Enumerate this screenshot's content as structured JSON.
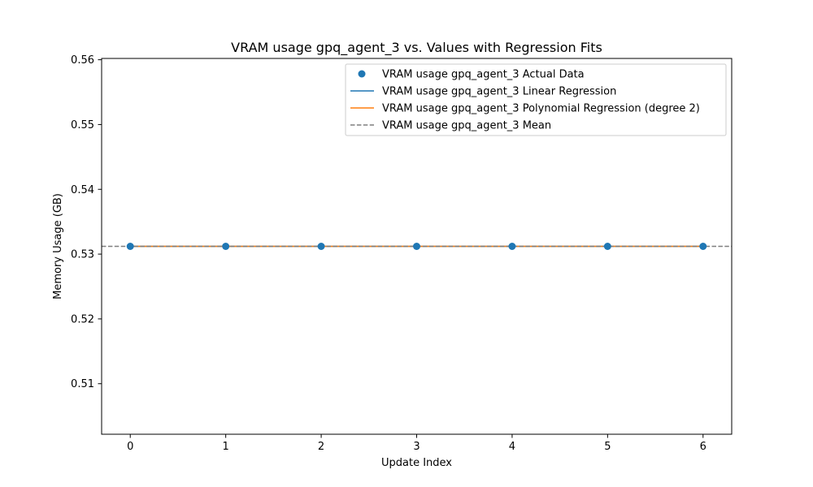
{
  "chart_data": {
    "type": "scatter",
    "title": "VRAM usage gpq_agent_3 vs. Values with Regression Fits",
    "xlabel": "Update Index",
    "ylabel": "Memory Usage (GB)",
    "xlim": [
      -0.3,
      6.3
    ],
    "ylim": [
      0.5022,
      0.5602
    ],
    "x_ticks": [
      0,
      1,
      2,
      3,
      4,
      5,
      6
    ],
    "y_ticks": [
      0.51,
      0.52,
      0.53,
      0.54,
      0.55,
      0.56
    ],
    "y_tick_labels": [
      "0.51",
      "0.52",
      "0.53",
      "0.54",
      "0.55",
      "0.56"
    ],
    "grid": false,
    "legend_position": "top-right",
    "series": [
      {
        "name": "VRAM usage gpq_agent_3 Actual Data",
        "kind": "scatter",
        "color": "#1f77b4",
        "x": [
          0,
          1,
          2,
          3,
          4,
          5,
          6
        ],
        "y": [
          0.5312,
          0.5312,
          0.5312,
          0.5312,
          0.5312,
          0.5312,
          0.5312
        ]
      },
      {
        "name": "VRAM usage gpq_agent_3 Linear Regression",
        "kind": "line",
        "color": "#1f77b4",
        "x": [
          0,
          6
        ],
        "y": [
          0.5312,
          0.5312
        ]
      },
      {
        "name": "VRAM usage gpq_agent_3 Polynomial Regression (degree 2)",
        "kind": "line",
        "color": "#ff7f0e",
        "x": [
          0,
          6
        ],
        "y": [
          0.5312,
          0.5312
        ]
      },
      {
        "name": "VRAM usage gpq_agent_3 Mean",
        "kind": "hline",
        "color": "#7f7f7f",
        "y": 0.5312
      }
    ]
  }
}
